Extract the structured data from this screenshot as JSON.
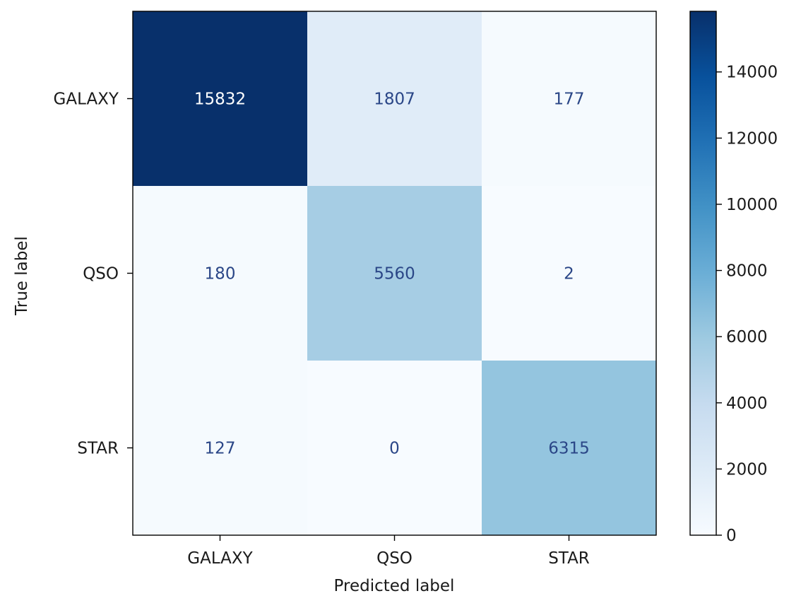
{
  "chart_data": {
    "type": "heatmap",
    "title": "",
    "xlabel": "Predicted label",
    "ylabel": "True label",
    "x_categories": [
      "GALAXY",
      "QSO",
      "STAR"
    ],
    "y_categories": [
      "GALAXY",
      "QSO",
      "STAR"
    ],
    "matrix": [
      [
        15832,
        1807,
        177
      ],
      [
        180,
        5560,
        2
      ],
      [
        127,
        0,
        6315
      ]
    ],
    "colorbar": {
      "range": [
        0,
        15832
      ],
      "ticks": [
        0,
        2000,
        4000,
        6000,
        8000,
        10000,
        12000,
        14000
      ],
      "tick_labels": [
        "0",
        "2000",
        "4000",
        "6000",
        "8000",
        "10000",
        "12000",
        "14000"
      ]
    },
    "colormap": [
      "#f7fbff",
      "#deebf7",
      "#c6dbef",
      "#9ecae1",
      "#6baed6",
      "#4292c6",
      "#2171b5",
      "#08519c",
      "#08306b"
    ],
    "text_colors": {
      "light_cells": "#2a4687",
      "dark_cells": "#ffffff"
    },
    "grid": false
  }
}
